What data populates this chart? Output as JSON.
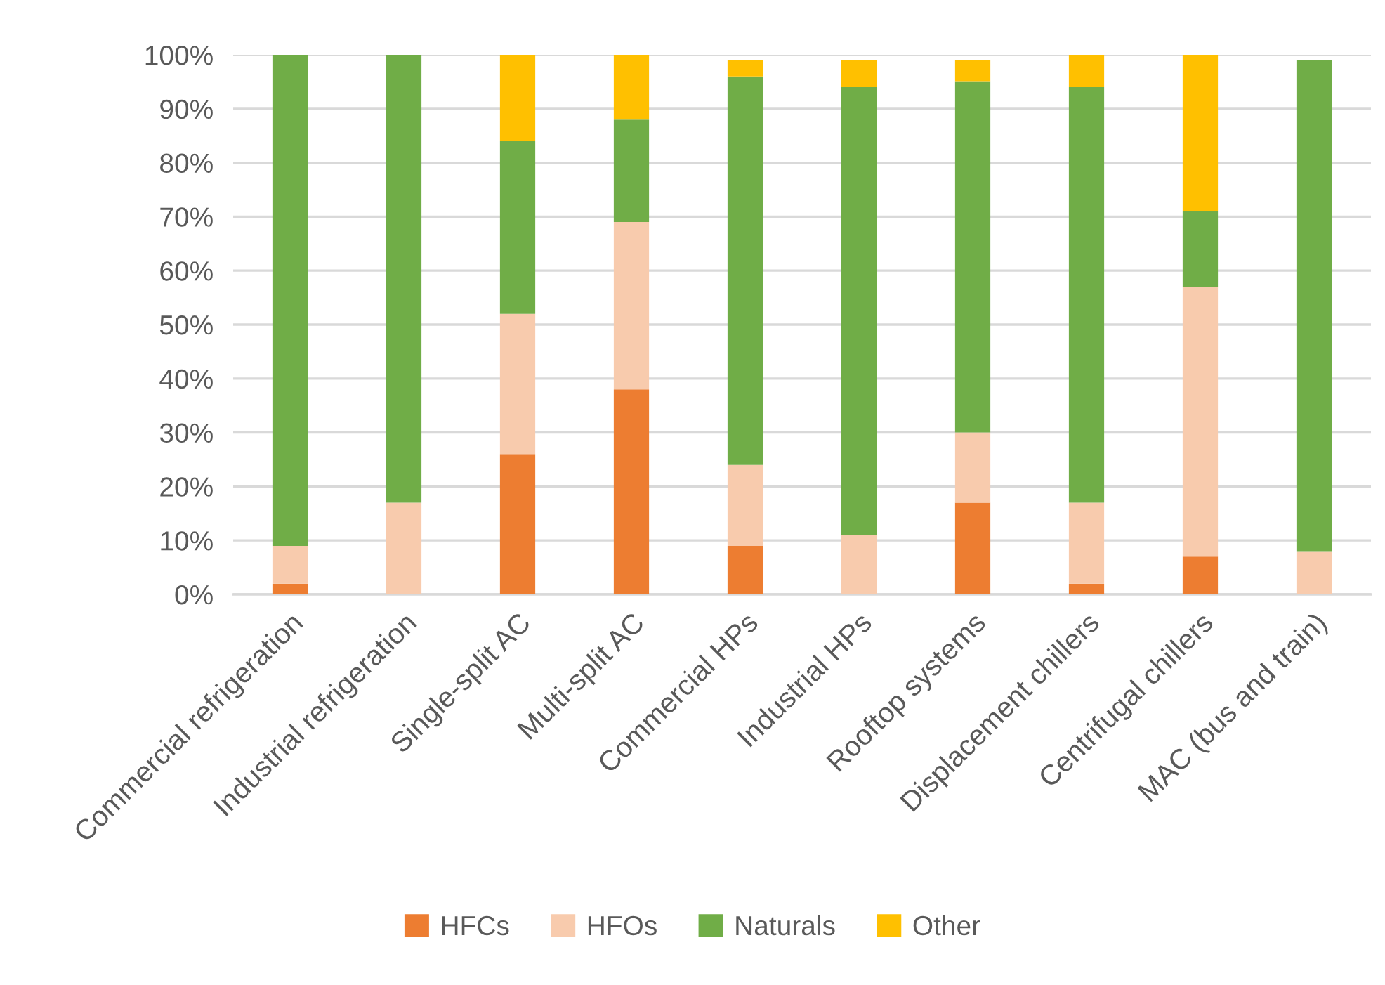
{
  "chart_data": {
    "type": "bar",
    "stacked": true,
    "categories": [
      "Commercial refrigeration",
      "Industrial refrigeration",
      "Single-split AC",
      "Multi-split AC",
      "Commercial HPs",
      "Industrial HPs",
      "Rooftop systems",
      "Displacement chillers",
      "Centrifugal chillers",
      "MAC (bus and train)"
    ],
    "series": [
      {
        "name": "HFCs",
        "color": "#ed7d31",
        "values": [
          2,
          0,
          26,
          38,
          9,
          0,
          17,
          2,
          7,
          0
        ]
      },
      {
        "name": "HFOs",
        "color": "#f8cbad",
        "values": [
          7,
          17,
          26,
          31,
          15,
          11,
          13,
          15,
          50,
          8
        ]
      },
      {
        "name": "Naturals",
        "color": "#70ad47",
        "values": [
          91,
          83,
          32,
          19,
          72,
          83,
          65,
          77,
          14,
          91
        ]
      },
      {
        "name": "Other",
        "color": "#ffc000",
        "values": [
          0,
          0,
          16,
          12,
          3,
          5,
          4,
          6,
          29,
          0
        ]
      }
    ],
    "ylim": [
      0,
      100
    ],
    "yticks": [
      {
        "value": 0,
        "label": "0%"
      },
      {
        "value": 10,
        "label": "10%"
      },
      {
        "value": 20,
        "label": "20%"
      },
      {
        "value": 30,
        "label": "30%"
      },
      {
        "value": 40,
        "label": "40%"
      },
      {
        "value": 50,
        "label": "50%"
      },
      {
        "value": 60,
        "label": "60%"
      },
      {
        "value": 70,
        "label": "70%"
      },
      {
        "value": 80,
        "label": "80%"
      },
      {
        "value": 90,
        "label": "90%"
      },
      {
        "value": 100,
        "label": "100%"
      }
    ],
    "grid": "y",
    "legend": "bottom"
  }
}
